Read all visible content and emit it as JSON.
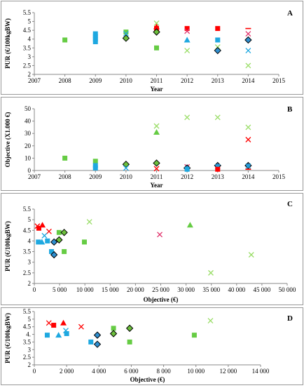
{
  "colors": {
    "red": "#ff0000",
    "blue": "#1ea8e0",
    "green": "#66cc44",
    "lightgreen": "#99dd66",
    "pink": "#e0306a",
    "darkgreen": "#2f7a2f",
    "navy": "#1f4e79"
  },
  "chart_data": [
    {
      "type": "scatter",
      "panel_letter": "A",
      "xlabel": "Year",
      "ylabel": "PUR  (€/100kgBW)",
      "xlim": [
        2007,
        2015
      ],
      "ylim": [
        2,
        5.5
      ],
      "xticks": [
        2007,
        2008,
        2009,
        2010,
        2011,
        2012,
        2013,
        2014,
        2015
      ],
      "yticks": [
        2,
        2.5,
        3,
        3.5,
        4,
        4.5,
        5,
        5.5
      ],
      "tick_labels_x": [
        "2007",
        "2008",
        "2009",
        "2010",
        "2011",
        "2012",
        "2013",
        "2014",
        "2015"
      ],
      "tick_labels_y": [
        "2",
        "2.5",
        "3",
        "3.5",
        "4",
        "4.5",
        "5",
        "5.5"
      ],
      "points": [
        {
          "x": 2008,
          "y": 3.95,
          "m": "square",
          "c": "green"
        },
        {
          "x": 2009,
          "y": 4.3,
          "m": "square",
          "c": "blue"
        },
        {
          "x": 2009,
          "y": 4.15,
          "m": "square",
          "c": "blue"
        },
        {
          "x": 2009,
          "y": 4.0,
          "m": "square",
          "c": "blue"
        },
        {
          "x": 2009,
          "y": 3.85,
          "m": "square",
          "c": "blue"
        },
        {
          "x": 2010,
          "y": 4.4,
          "m": "square",
          "c": "green"
        },
        {
          "x": 2010,
          "y": 4.3,
          "m": "x",
          "c": "blue"
        },
        {
          "x": 2010,
          "y": 4.05,
          "m": "diamond",
          "c": "darkgreen"
        },
        {
          "x": 2011,
          "y": 4.9,
          "m": "x",
          "c": "lightgreen"
        },
        {
          "x": 2011,
          "y": 4.7,
          "m": "triangle",
          "c": "red"
        },
        {
          "x": 2011,
          "y": 4.6,
          "m": "square",
          "c": "red"
        },
        {
          "x": 2011,
          "y": 4.4,
          "m": "diamond",
          "c": "darkgreen"
        },
        {
          "x": 2011,
          "y": 3.5,
          "m": "square",
          "c": "green"
        },
        {
          "x": 2012,
          "y": 4.6,
          "m": "square",
          "c": "red"
        },
        {
          "x": 2012,
          "y": 4.45,
          "m": "x",
          "c": "pink"
        },
        {
          "x": 2012,
          "y": 3.95,
          "m": "triangle",
          "c": "blue"
        },
        {
          "x": 2012,
          "y": 3.35,
          "m": "x",
          "c": "lightgreen"
        },
        {
          "x": 2013,
          "y": 4.6,
          "m": "square",
          "c": "red"
        },
        {
          "x": 2013,
          "y": 3.95,
          "m": "square",
          "c": "blue"
        },
        {
          "x": 2013,
          "y": 3.55,
          "m": "x",
          "c": "lightgreen"
        },
        {
          "x": 2013,
          "y": 3.35,
          "m": "diamond",
          "c": "navy"
        },
        {
          "x": 2014,
          "y": 4.6,
          "m": "dash",
          "c": "red"
        },
        {
          "x": 2014,
          "y": 4.3,
          "m": "x",
          "c": "pink"
        },
        {
          "x": 2014,
          "y": 3.95,
          "m": "diamond",
          "c": "navy"
        },
        {
          "x": 2014,
          "y": 3.35,
          "m": "x",
          "c": "blue"
        },
        {
          "x": 2014,
          "y": 2.5,
          "m": "x",
          "c": "lightgreen"
        }
      ]
    },
    {
      "type": "scatter",
      "panel_letter": "B",
      "xlabel": "Year",
      "ylabel": "Objective  (X1.000 €)",
      "xlim": [
        2007,
        2015
      ],
      "ylim": [
        0,
        50
      ],
      "xticks": [
        2007,
        2008,
        2009,
        2010,
        2011,
        2012,
        2013,
        2014,
        2015
      ],
      "yticks": [
        0,
        10,
        20,
        30,
        40,
        50
      ],
      "tick_labels_x": [
        "2007",
        "2008",
        "2009",
        "2010",
        "2011",
        "2012",
        "2013",
        "2014",
        "2015"
      ],
      "tick_labels_y": [
        "0",
        "10",
        "20",
        "30",
        "40",
        "50"
      ],
      "points": [
        {
          "x": 2008,
          "y": 10,
          "m": "square",
          "c": "green"
        },
        {
          "x": 2009,
          "y": 7.5,
          "m": "square",
          "c": "green"
        },
        {
          "x": 2009,
          "y": 4,
          "m": "square",
          "c": "blue"
        },
        {
          "x": 2009,
          "y": 2,
          "m": "square",
          "c": "blue"
        },
        {
          "x": 2010,
          "y": 5,
          "m": "diamond",
          "c": "darkgreen"
        },
        {
          "x": 2010,
          "y": 2,
          "m": "x",
          "c": "blue"
        },
        {
          "x": 2011,
          "y": 36,
          "m": "x",
          "c": "lightgreen"
        },
        {
          "x": 2011,
          "y": 31,
          "m": "triangle",
          "c": "green"
        },
        {
          "x": 2011,
          "y": 6,
          "m": "diamond",
          "c": "darkgreen"
        },
        {
          "x": 2011,
          "y": 1.5,
          "m": "x",
          "c": "red"
        },
        {
          "x": 2012,
          "y": 43,
          "m": "x",
          "c": "lightgreen"
        },
        {
          "x": 2012,
          "y": 3,
          "m": "x",
          "c": "pink"
        },
        {
          "x": 2012,
          "y": 2,
          "m": "diamond",
          "c": "navy"
        },
        {
          "x": 2012,
          "y": 1,
          "m": "square",
          "c": "blue"
        },
        {
          "x": 2013,
          "y": 43,
          "m": "x",
          "c": "lightgreen"
        },
        {
          "x": 2013,
          "y": 4,
          "m": "diamond",
          "c": "navy"
        },
        {
          "x": 2013,
          "y": 3,
          "m": "x",
          "c": "blue"
        },
        {
          "x": 2013,
          "y": 1,
          "m": "square",
          "c": "red"
        },
        {
          "x": 2014,
          "y": 35,
          "m": "x",
          "c": "lightgreen"
        },
        {
          "x": 2014,
          "y": 25,
          "m": "x",
          "c": "red"
        },
        {
          "x": 2014,
          "y": 4,
          "m": "diamond",
          "c": "navy"
        },
        {
          "x": 2014,
          "y": 3.5,
          "m": "x",
          "c": "blue"
        },
        {
          "x": 2014,
          "y": 1,
          "m": "dash",
          "c": "red"
        }
      ]
    },
    {
      "type": "scatter",
      "panel_letter": "C",
      "xlabel": "Objective (€)",
      "ylabel": "PUR (€/100kgBW)",
      "xlim": [
        0,
        50000
      ],
      "ylim": [
        2,
        5.5
      ],
      "xticks": [
        0,
        5000,
        10000,
        15000,
        20000,
        25000,
        30000,
        35000,
        40000,
        45000,
        50000
      ],
      "yticks": [
        2,
        2.5,
        3,
        3.5,
        4,
        4.5,
        5,
        5.5
      ],
      "tick_labels_x": [
        "0",
        "5 000",
        "10 000",
        "15 000",
        "20 000",
        "25 000",
        "30 000",
        "35 000",
        "40 000",
        "45 000",
        "50 000"
      ],
      "tick_labels_y": [
        "2",
        "2.5",
        "3",
        "3.5",
        "4",
        "4.5",
        "5",
        "5.5"
      ],
      "points": [
        {
          "x": 600,
          "y": 4.7,
          "m": "x",
          "c": "red"
        },
        {
          "x": 900,
          "y": 4.6,
          "m": "square",
          "c": "red"
        },
        {
          "x": 1600,
          "y": 4.75,
          "m": "triangle",
          "c": "red"
        },
        {
          "x": 2900,
          "y": 4.45,
          "m": "x",
          "c": "red"
        },
        {
          "x": 800,
          "y": 3.95,
          "m": "square",
          "c": "blue"
        },
        {
          "x": 1500,
          "y": 3.95,
          "m": "triangle",
          "c": "blue"
        },
        {
          "x": 2000,
          "y": 4.25,
          "m": "x",
          "c": "blue"
        },
        {
          "x": 2600,
          "y": 4.0,
          "m": "square",
          "c": "blue"
        },
        {
          "x": 3400,
          "y": 3.5,
          "m": "square",
          "c": "blue"
        },
        {
          "x": 3900,
          "y": 3.95,
          "m": "diamond",
          "c": "navy"
        },
        {
          "x": 3900,
          "y": 3.35,
          "m": "diamond",
          "c": "navy"
        },
        {
          "x": 4900,
          "y": 4.4,
          "m": "square",
          "c": "green"
        },
        {
          "x": 4900,
          "y": 4.05,
          "m": "diamond",
          "c": "darkgreen"
        },
        {
          "x": 5900,
          "y": 4.4,
          "m": "diamond",
          "c": "darkgreen"
        },
        {
          "x": 5900,
          "y": 3.5,
          "m": "square",
          "c": "green"
        },
        {
          "x": 9900,
          "y": 3.95,
          "m": "square",
          "c": "green"
        },
        {
          "x": 10900,
          "y": 4.9,
          "m": "x",
          "c": "lightgreen"
        },
        {
          "x": 24800,
          "y": 4.3,
          "m": "x",
          "c": "pink"
        },
        {
          "x": 30800,
          "y": 4.75,
          "m": "triangle",
          "c": "green"
        },
        {
          "x": 34900,
          "y": 2.5,
          "m": "x",
          "c": "lightgreen"
        },
        {
          "x": 42900,
          "y": 3.35,
          "m": "x",
          "c": "lightgreen"
        }
      ]
    },
    {
      "type": "scatter",
      "panel_letter": "D",
      "xlabel": "Objective (€)",
      "ylabel": "PUR (€/100kgBW)",
      "xlim": [
        0,
        14000
      ],
      "ylim": [
        2,
        5.5
      ],
      "xticks": [
        0,
        2000,
        4000,
        6000,
        8000,
        10000,
        12000,
        14000
      ],
      "yticks": [
        2,
        2.5,
        3,
        3.5,
        4,
        4.5,
        5,
        5.5
      ],
      "tick_labels_x": [
        "0",
        "2 000",
        "4 000",
        "6 000",
        "8 000",
        "10 000",
        "12 000",
        "14 000"
      ],
      "tick_labels_y": [
        "2",
        "2.5",
        "3",
        "3.5",
        "4.",
        "4.5",
        "5",
        "5.5"
      ],
      "points": [
        {
          "x": 900,
          "y": 4.75,
          "m": "x",
          "c": "red"
        },
        {
          "x": 1200,
          "y": 4.6,
          "m": "square",
          "c": "red"
        },
        {
          "x": 1800,
          "y": 4.75,
          "m": "triangle",
          "c": "red"
        },
        {
          "x": 2900,
          "y": 4.5,
          "m": "x",
          "c": "red"
        },
        {
          "x": 800,
          "y": 3.95,
          "m": "square",
          "c": "blue"
        },
        {
          "x": 1500,
          "y": 3.95,
          "m": "triangle",
          "c": "blue"
        },
        {
          "x": 1950,
          "y": 4.25,
          "m": "x",
          "c": "blue"
        },
        {
          "x": 2000,
          "y": 4.05,
          "m": "square",
          "c": "blue"
        },
        {
          "x": 3500,
          "y": 3.5,
          "m": "square",
          "c": "blue"
        },
        {
          "x": 3900,
          "y": 3.95,
          "m": "diamond",
          "c": "navy"
        },
        {
          "x": 3900,
          "y": 3.35,
          "m": "diamond",
          "c": "navy"
        },
        {
          "x": 4900,
          "y": 4.4,
          "m": "square",
          "c": "green"
        },
        {
          "x": 4900,
          "y": 4.05,
          "m": "diamond",
          "c": "darkgreen"
        },
        {
          "x": 5900,
          "y": 4.4,
          "m": "diamond",
          "c": "darkgreen"
        },
        {
          "x": 5900,
          "y": 3.5,
          "m": "square",
          "c": "green"
        },
        {
          "x": 9900,
          "y": 3.95,
          "m": "square",
          "c": "green"
        },
        {
          "x": 10900,
          "y": 4.9,
          "m": "x",
          "c": "lightgreen"
        }
      ]
    }
  ]
}
